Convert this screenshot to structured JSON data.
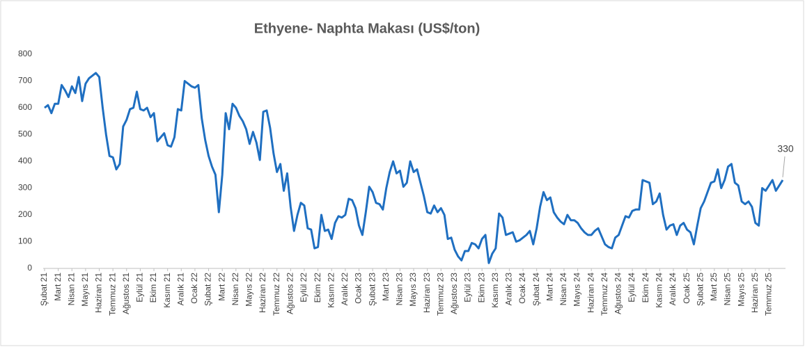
{
  "chart_data": {
    "type": "line",
    "title": "Ethyene- Naphta Makası (US$/ton)",
    "categories": [
      "Şubat 21",
      null,
      null,
      null,
      "Mart 21",
      null,
      null,
      null,
      "Nisan 21",
      null,
      null,
      null,
      "Mayıs 21",
      null,
      null,
      null,
      "Haziran 21",
      null,
      null,
      null,
      "Temmuz 21",
      null,
      null,
      null,
      "Ağustos 21",
      null,
      null,
      null,
      "Eylül 21",
      null,
      null,
      null,
      "Ekim 21",
      null,
      null,
      null,
      "Kasım 21",
      null,
      null,
      null,
      "Aralık 21",
      null,
      null,
      null,
      "Ocak 22",
      null,
      null,
      null,
      "Şubat 22",
      null,
      null,
      null,
      "Mart 22",
      null,
      null,
      null,
      "Nisan 22",
      null,
      null,
      null,
      "Mayıs 22",
      null,
      null,
      null,
      "Haziran 22",
      null,
      null,
      null,
      "Temmuz 22",
      null,
      null,
      null,
      "Ağustos 22",
      null,
      null,
      null,
      "Eylül 22",
      null,
      null,
      null,
      "Ekim 22",
      null,
      null,
      null,
      "Kasım 22",
      null,
      null,
      null,
      "Aralık 22",
      null,
      null,
      null,
      "Ocak 23",
      null,
      null,
      null,
      "Şubat 23",
      null,
      null,
      null,
      "Mart 23",
      null,
      null,
      null,
      "Nisan 23",
      null,
      null,
      null,
      "Mayıs 23",
      null,
      null,
      null,
      "Haziran 23",
      null,
      null,
      null,
      "Temmuz 23",
      null,
      null,
      null,
      "Ağustos 23",
      null,
      null,
      null,
      "Eylül 23",
      null,
      null,
      null,
      "Ekim 23",
      null,
      null,
      null,
      "Kasım 23",
      null,
      null,
      null,
      "Aralık 23",
      null,
      null,
      null,
      "Ocak 24",
      null,
      null,
      null,
      "Şubat 24",
      null,
      null,
      null,
      "Mart 24",
      null,
      null,
      null,
      "Nisan 24",
      null,
      null,
      null,
      "Mayıs 24",
      null,
      null,
      null,
      "Haziran 24",
      null,
      null,
      null,
      "Temmuz 24",
      null,
      null,
      null,
      "Ağustos 24",
      null,
      null,
      null,
      "Eylül 24",
      null,
      null,
      null,
      "Ekim 24",
      null,
      null,
      null,
      "Kasım 24",
      null,
      null,
      null,
      "Aralık 24",
      null,
      null,
      null,
      "Ocak 25",
      null,
      null,
      null,
      "Şubat 25",
      null,
      null,
      null,
      "Mart 25",
      null,
      null,
      null,
      "Nisan 25",
      null,
      null,
      null,
      "Mayıs 25",
      null,
      null,
      null,
      "Haziran 25",
      null,
      null,
      null,
      "Temmuz 25",
      null,
      null,
      null,
      null
    ],
    "series": [
      {
        "color": "#1f6fc1",
        "values": [
          600,
          610,
          580,
          615,
          615,
          685,
          665,
          640,
          680,
          655,
          715,
          625,
          690,
          710,
          720,
          730,
          715,
          600,
          500,
          420,
          415,
          370,
          390,
          530,
          555,
          595,
          600,
          660,
          595,
          590,
          600,
          565,
          580,
          475,
          490,
          505,
          460,
          455,
          490,
          595,
          590,
          700,
          690,
          680,
          675,
          685,
          560,
          480,
          420,
          380,
          350,
          210,
          350,
          580,
          520,
          615,
          600,
          570,
          550,
          520,
          465,
          510,
          470,
          405,
          585,
          590,
          525,
          430,
          360,
          390,
          290,
          355,
          230,
          140,
          200,
          245,
          235,
          150,
          145,
          75,
          80,
          200,
          140,
          145,
          110,
          170,
          195,
          190,
          200,
          260,
          255,
          225,
          160,
          125,
          210,
          305,
          285,
          245,
          240,
          220,
          300,
          360,
          400,
          355,
          365,
          305,
          320,
          400,
          360,
          370,
          320,
          270,
          210,
          205,
          235,
          210,
          225,
          200,
          110,
          115,
          70,
          45,
          30,
          65,
          65,
          95,
          90,
          75,
          110,
          125,
          20,
          55,
          75,
          205,
          190,
          125,
          130,
          135,
          100,
          105,
          115,
          125,
          140,
          90,
          150,
          230,
          285,
          255,
          265,
          210,
          190,
          175,
          165,
          200,
          180,
          180,
          170,
          150,
          135,
          125,
          125,
          140,
          150,
          120,
          90,
          80,
          75,
          115,
          125,
          160,
          195,
          190,
          215,
          220,
          220,
          330,
          325,
          320,
          240,
          250,
          280,
          200,
          145,
          160,
          165,
          125,
          160,
          170,
          145,
          135,
          90,
          160,
          225,
          250,
          285,
          320,
          325,
          370,
          300,
          330,
          380,
          390,
          320,
          310,
          250,
          240,
          250,
          230,
          170,
          160,
          300,
          290,
          310,
          330,
          290,
          310,
          330
        ]
      }
    ],
    "ylim": [
      0,
      800
    ],
    "yticks": [
      0,
      100,
      200,
      300,
      400,
      500,
      600,
      700,
      800
    ],
    "grid": false
  }
}
